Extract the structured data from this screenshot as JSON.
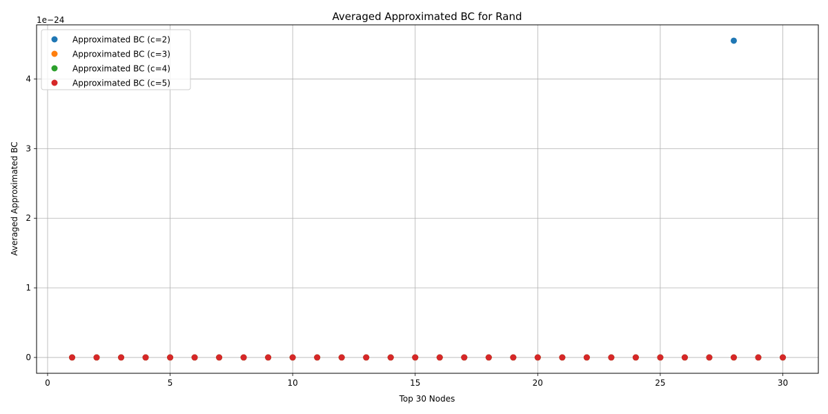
{
  "chart_data": {
    "type": "scatter",
    "title": "Averaged Approximated BC for Rand",
    "xlabel": "Top 30 Nodes",
    "ylabel": "Averaged Approximated BC",
    "y_offset_label": "1e−24",
    "xlim": [
      -0.45,
      31.45
    ],
    "ylim": [
      -0.2275,
      4.7775
    ],
    "x_ticks": [
      0,
      5,
      10,
      15,
      20,
      25,
      30
    ],
    "x_tick_labels": [
      "0",
      "5",
      "10",
      "15",
      "20",
      "25",
      "30"
    ],
    "y_ticks": [
      0,
      1,
      2,
      3,
      4
    ],
    "y_tick_labels": [
      "0",
      "1",
      "2",
      "3",
      "4"
    ],
    "y_unit_scale": "1e-24",
    "grid": true,
    "legend_placement": "top-left",
    "x": [
      1,
      2,
      3,
      4,
      5,
      6,
      7,
      8,
      9,
      10,
      11,
      12,
      13,
      14,
      15,
      16,
      17,
      18,
      19,
      20,
      21,
      22,
      23,
      24,
      25,
      26,
      27,
      28,
      29,
      30
    ],
    "series": [
      {
        "name": "Approximated BC (c=2)",
        "color": "#1f77b4",
        "values": [
          0,
          0,
          0,
          0,
          0,
          0,
          0,
          0,
          0,
          0,
          0,
          0,
          0,
          0,
          0,
          0,
          0,
          0,
          0,
          0,
          0,
          0,
          0,
          0,
          0,
          0,
          0,
          4.55,
          0,
          0
        ]
      },
      {
        "name": "Approximated BC (c=3)",
        "color": "#ff7f0e",
        "values": [
          0,
          0,
          0,
          0,
          0,
          0,
          0,
          0,
          0,
          0,
          0,
          0,
          0,
          0,
          0,
          0,
          0,
          0,
          0,
          0,
          0,
          0,
          0,
          0,
          0,
          0,
          0,
          0,
          0,
          0
        ]
      },
      {
        "name": "Approximated BC (c=4)",
        "color": "#2ca02c",
        "values": [
          0,
          0,
          0,
          0,
          0,
          0,
          0,
          0,
          0,
          0,
          0,
          0,
          0,
          0,
          0,
          0,
          0,
          0,
          0,
          0,
          0,
          0,
          0,
          0,
          0,
          0,
          0,
          0,
          0,
          0
        ]
      },
      {
        "name": "Approximated BC (c=5)",
        "color": "#d62728",
        "values": [
          0,
          0,
          0,
          0,
          0,
          0,
          0,
          0,
          0,
          0,
          0,
          0,
          0,
          0,
          0,
          0,
          0,
          0,
          0,
          0,
          0,
          0,
          0,
          0,
          0,
          0,
          0,
          0,
          0,
          0
        ]
      }
    ]
  }
}
